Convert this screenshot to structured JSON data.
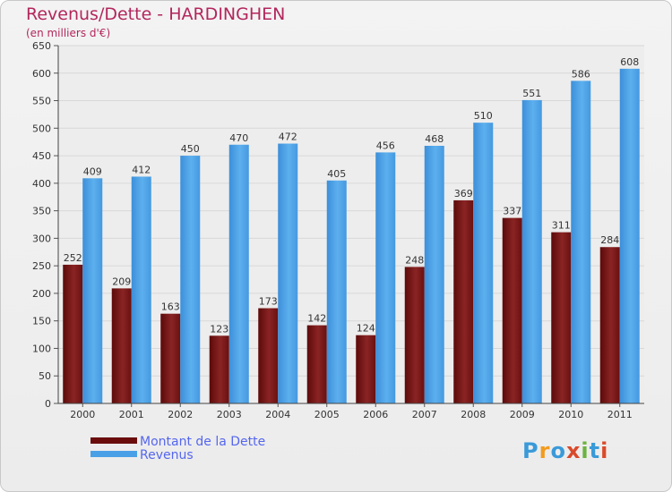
{
  "header": {
    "title": "Revenus/Dette - HARDINGHEN",
    "subtitle": "(en milliers d'€)"
  },
  "chart_data": {
    "type": "bar",
    "title": "Revenus/Dette - HARDINGHEN",
    "subtitle": "(en milliers d'€)",
    "categories": [
      "2000",
      "2001",
      "2002",
      "2003",
      "2004",
      "2005",
      "2006",
      "2007",
      "2008",
      "2009",
      "2010",
      "2011"
    ],
    "series": [
      {
        "name": "Montant de la Dette",
        "values": [
          252,
          209,
          163,
          123,
          173,
          142,
          124,
          248,
          369,
          337,
          311,
          284
        ],
        "color": "#7a1a1a"
      },
      {
        "name": "Revenus",
        "values": [
          409,
          412,
          450,
          470,
          472,
          405,
          456,
          468,
          510,
          551,
          586,
          608
        ],
        "color": "#4fa3e6"
      }
    ],
    "ylim": [
      0,
      650
    ],
    "yticks": [
      0,
      50,
      100,
      150,
      200,
      250,
      300,
      350,
      400,
      450,
      500,
      550,
      600,
      650
    ],
    "grid": true,
    "legend": "bottom-left"
  },
  "legend": {
    "items": [
      {
        "label": "Montant de la Dette",
        "color": "#6b0d0d"
      },
      {
        "label": "Revenus",
        "color": "#4aa0e6"
      }
    ]
  },
  "logo": {
    "letters": [
      "P",
      "r",
      "o",
      "x",
      "i",
      "t",
      "i"
    ],
    "colors": [
      "#3a9ad9",
      "#f29b1d",
      "#3a9ad9",
      "#d94a2b",
      "#6cb33f",
      "#3a9ad9",
      "#d94a2b"
    ]
  }
}
